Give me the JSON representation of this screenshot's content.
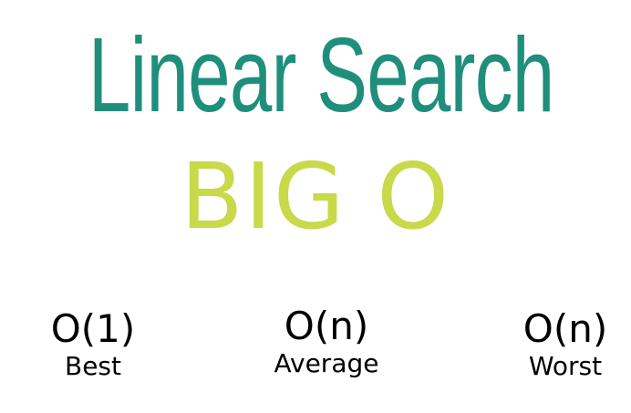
{
  "title": "Linear Search",
  "subtitle": "BIG O",
  "colors": {
    "title": "#1f8f7c",
    "subtitle": "#c8d94a",
    "text": "#000000",
    "background": "#ffffff"
  },
  "cases": [
    {
      "notation": "O(1)",
      "label": "Best"
    },
    {
      "notation": "O(n)",
      "label": "Average"
    },
    {
      "notation": "O(n)",
      "label": "Worst"
    }
  ]
}
